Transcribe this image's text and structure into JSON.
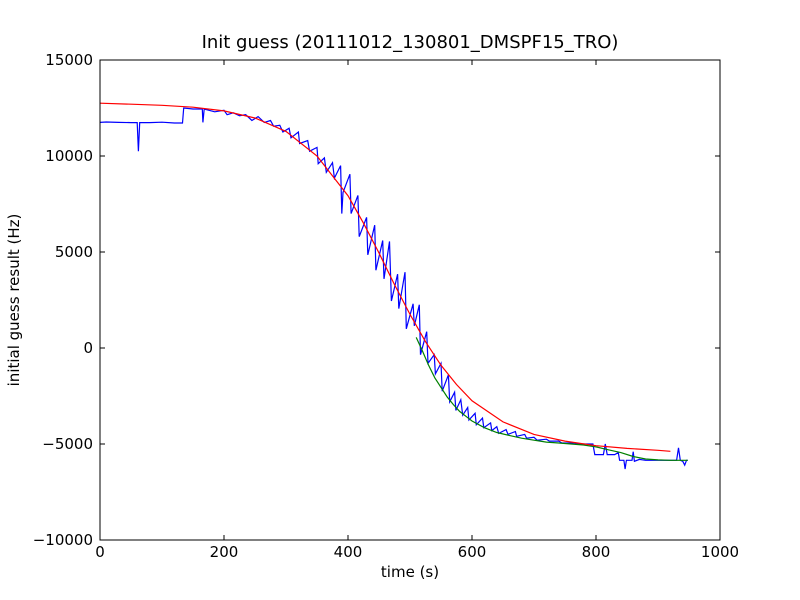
{
  "chart_data": {
    "type": "line",
    "title": "Init guess (20111012_130801_DMSPF15_TRO)",
    "xlabel": "time (s)",
    "ylabel": "initial guess result (Hz)",
    "xlim": [
      0,
      1000
    ],
    "ylim": [
      -10000,
      15000
    ],
    "xticks": [
      0,
      200,
      400,
      600,
      800,
      1000
    ],
    "yticks": [
      -10000,
      -5000,
      0,
      5000,
      10000,
      15000
    ],
    "xtick_labels": [
      "0",
      "200",
      "400",
      "600",
      "800",
      "1000"
    ],
    "ytick_labels": [
      "−10000",
      "−5000",
      "0",
      "5000",
      "10000",
      "15000"
    ],
    "grid": false,
    "colors": {
      "measured": "#0000ff",
      "smoothed": "#008000",
      "fit": "#ff0000"
    },
    "series": [
      {
        "color": "#0000ff",
        "points": [
          [
            0,
            11750
          ],
          [
            10,
            11770
          ],
          [
            30,
            11750
          ],
          [
            50,
            11740
          ],
          [
            60,
            11740
          ],
          [
            62,
            10250
          ],
          [
            64,
            11740
          ],
          [
            80,
            11740
          ],
          [
            100,
            11760
          ],
          [
            120,
            11720
          ],
          [
            133,
            11720
          ],
          [
            135,
            12500
          ],
          [
            150,
            12450
          ],
          [
            165,
            12450
          ],
          [
            166,
            11750
          ],
          [
            168,
            12450
          ],
          [
            185,
            12300
          ],
          [
            200,
            12380
          ],
          [
            205,
            12150
          ],
          [
            215,
            12250
          ],
          [
            225,
            12100
          ],
          [
            235,
            12150
          ],
          [
            245,
            11850
          ],
          [
            255,
            12050
          ],
          [
            265,
            11750
          ],
          [
            275,
            11850
          ],
          [
            280,
            11550
          ],
          [
            290,
            11600
          ],
          [
            295,
            11250
          ],
          [
            305,
            11450
          ],
          [
            308,
            10950
          ],
          [
            320,
            11250
          ],
          [
            322,
            10650
          ],
          [
            335,
            10800
          ],
          [
            338,
            10250
          ],
          [
            350,
            10450
          ],
          [
            352,
            9600
          ],
          [
            362,
            9900
          ],
          [
            365,
            9150
          ],
          [
            375,
            9650
          ],
          [
            378,
            8850
          ],
          [
            388,
            9500
          ],
          [
            390,
            7000
          ],
          [
            392,
            8100
          ],
          [
            403,
            9050
          ],
          [
            405,
            7000
          ],
          [
            416,
            7950
          ],
          [
            418,
            5800
          ],
          [
            430,
            6800
          ],
          [
            432,
            4850
          ],
          [
            443,
            6400
          ],
          [
            445,
            4050
          ],
          [
            456,
            5600
          ],
          [
            458,
            3600
          ],
          [
            467,
            5550
          ],
          [
            470,
            2450
          ],
          [
            480,
            3850
          ],
          [
            482,
            2050
          ],
          [
            492,
            3950
          ],
          [
            494,
            1000
          ],
          [
            505,
            2300
          ],
          [
            507,
            1150
          ],
          [
            515,
            2250
          ],
          [
            517,
            -350
          ],
          [
            527,
            850
          ],
          [
            529,
            -800
          ],
          [
            539,
            -350
          ],
          [
            541,
            -1350
          ],
          [
            550,
            -800
          ],
          [
            552,
            -2250
          ],
          [
            562,
            -1400
          ],
          [
            564,
            -2800
          ],
          [
            572,
            -2300
          ],
          [
            574,
            -3250
          ],
          [
            582,
            -2700
          ],
          [
            585,
            -3500
          ],
          [
            593,
            -3100
          ],
          [
            595,
            -3750
          ],
          [
            605,
            -3400
          ],
          [
            607,
            -4000
          ],
          [
            617,
            -3650
          ],
          [
            619,
            -4150
          ],
          [
            630,
            -3900
          ],
          [
            632,
            -4300
          ],
          [
            640,
            -4100
          ],
          [
            643,
            -4450
          ],
          [
            655,
            -4250
          ],
          [
            658,
            -4500
          ],
          [
            670,
            -4350
          ],
          [
            672,
            -4600
          ],
          [
            685,
            -4500
          ],
          [
            688,
            -4700
          ],
          [
            700,
            -4650
          ],
          [
            705,
            -4800
          ],
          [
            720,
            -4750
          ],
          [
            725,
            -4850
          ],
          [
            740,
            -4850
          ],
          [
            745,
            -4950
          ],
          [
            765,
            -4950
          ],
          [
            770,
            -5000
          ],
          [
            790,
            -5000
          ],
          [
            795,
            -5000
          ],
          [
            798,
            -5550
          ],
          [
            812,
            -5550
          ],
          [
            815,
            -5000
          ],
          [
            818,
            -5550
          ],
          [
            830,
            -5550
          ],
          [
            836,
            -5450
          ],
          [
            838,
            -5850
          ],
          [
            845,
            -5850
          ],
          [
            847,
            -6300
          ],
          [
            849,
            -5850
          ],
          [
            858,
            -5850
          ],
          [
            860,
            -5400
          ],
          [
            862,
            -5900
          ],
          [
            870,
            -5800
          ],
          [
            880,
            -5850
          ],
          [
            890,
            -5850
          ],
          [
            900,
            -5850
          ],
          [
            915,
            -5850
          ],
          [
            925,
            -5850
          ],
          [
            930,
            -5850
          ],
          [
            933,
            -5200
          ],
          [
            936,
            -5850
          ],
          [
            940,
            -5900
          ],
          [
            943,
            -6100
          ],
          [
            946,
            -5850
          ],
          [
            948,
            -5850
          ]
        ]
      },
      {
        "color": "#008000",
        "points": [
          [
            510,
            550
          ],
          [
            520,
            -150
          ],
          [
            530,
            -900
          ],
          [
            540,
            -1550
          ],
          [
            550,
            -2050
          ],
          [
            560,
            -2550
          ],
          [
            570,
            -2950
          ],
          [
            580,
            -3300
          ],
          [
            590,
            -3550
          ],
          [
            600,
            -3800
          ],
          [
            620,
            -4150
          ],
          [
            640,
            -4400
          ],
          [
            660,
            -4550
          ],
          [
            680,
            -4700
          ],
          [
            700,
            -4800
          ],
          [
            720,
            -4900
          ],
          [
            740,
            -4950
          ],
          [
            760,
            -5000
          ],
          [
            780,
            -5050
          ],
          [
            800,
            -5150
          ],
          [
            820,
            -5300
          ],
          [
            840,
            -5450
          ],
          [
            860,
            -5650
          ],
          [
            880,
            -5780
          ],
          [
            900,
            -5830
          ],
          [
            920,
            -5850
          ],
          [
            948,
            -5850
          ]
        ]
      },
      {
        "color": "#ff0000",
        "points": [
          [
            0,
            12750
          ],
          [
            50,
            12700
          ],
          [
            100,
            12640
          ],
          [
            150,
            12540
          ],
          [
            200,
            12350
          ],
          [
            250,
            11980
          ],
          [
            300,
            11280
          ],
          [
            350,
            10000
          ],
          [
            400,
            7930
          ],
          [
            425,
            6500
          ],
          [
            450,
            4950
          ],
          [
            475,
            3300
          ],
          [
            500,
            1750
          ],
          [
            525,
            330
          ],
          [
            550,
            -900
          ],
          [
            575,
            -1900
          ],
          [
            600,
            -2750
          ],
          [
            650,
            -3850
          ],
          [
            700,
            -4500
          ],
          [
            750,
            -4850
          ],
          [
            800,
            -5090
          ],
          [
            850,
            -5230
          ],
          [
            900,
            -5330
          ],
          [
            920,
            -5380
          ]
        ]
      }
    ]
  }
}
